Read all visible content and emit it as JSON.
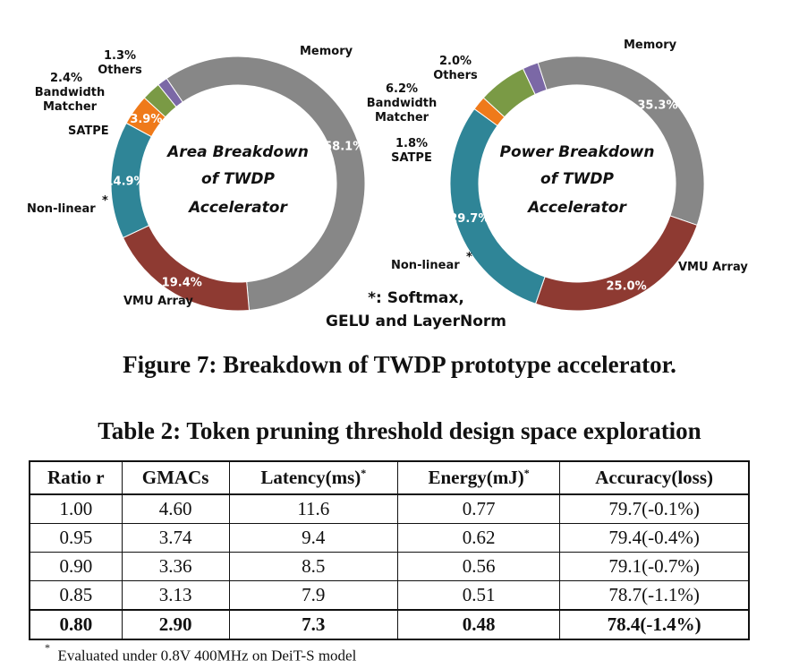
{
  "chart_data": [
    {
      "type": "pie",
      "center_text": [
        "Area Breakdown",
        "of TWDP",
        "Accelerator"
      ],
      "categories": [
        "Memory",
        "VMU Array",
        "Non-linear",
        "SATPE",
        "Bandwidth Matcher",
        "Others"
      ],
      "values": [
        58.1,
        19.4,
        14.9,
        3.9,
        2.4,
        1.3
      ],
      "value_labels": [
        "58.1%",
        "19.4%",
        "14.9%",
        "3.9%",
        "2.4%",
        "1.3%"
      ],
      "colors": [
        "#878787",
        "#8e3a32",
        "#2f8597",
        "#ef7a1a",
        "#7a9a45",
        "#7b68a6"
      ]
    },
    {
      "type": "pie",
      "center_text": [
        "Power Breakdown",
        "of TWDP",
        "Accelerator"
      ],
      "categories": [
        "Memory",
        "VMU Array",
        "Non-linear",
        "SATPE",
        "Bandwidth Matcher",
        "Others"
      ],
      "values": [
        35.3,
        25.0,
        29.7,
        1.8,
        6.2,
        2.0
      ],
      "value_labels": [
        "35.3%",
        "25.0%",
        "29.7%",
        "1.8%",
        "6.2%",
        "2.0%"
      ],
      "colors": [
        "#878787",
        "#8e3a32",
        "#2f8597",
        "#ef7a1a",
        "#7a9a45",
        "#7b68a6"
      ]
    }
  ],
  "labels": {
    "memory": "Memory",
    "vmu": "VMU Array",
    "nonlinear": "Non-linear",
    "star": "*",
    "satpe": "SATPE",
    "bandwidth": "Bandwidth",
    "matcher": "Matcher",
    "others": "Others"
  },
  "note_line1": "*: Softmax,",
  "note_line2": "GELU and LayerNorm",
  "figure_caption": "Figure 7: Breakdown of TWDP prototype accelerator.",
  "table_caption": "Table 2: Token pruning threshold design space exploration",
  "table": {
    "headers": [
      "Ratio r",
      "GMACs",
      "Latency(ms)",
      "Energy(mJ)",
      "Accuracy(loss)"
    ],
    "header_star": "*",
    "rows": [
      [
        "1.00",
        "4.60",
        "11.6",
        "0.77",
        "79.7(-0.1%)"
      ],
      [
        "0.95",
        "3.74",
        "9.4",
        "0.62",
        "79.4(-0.4%)"
      ],
      [
        "0.90",
        "3.36",
        "8.5",
        "0.56",
        "79.1(-0.7%)"
      ],
      [
        "0.85",
        "3.13",
        "7.9",
        "0.51",
        "78.7(-1.1%)"
      ],
      [
        "0.80",
        "2.90",
        "7.3",
        "0.48",
        "78.4(-1.4%)"
      ]
    ]
  },
  "footnote_mark": "*",
  "footnote": "Evaluated under 0.8V 400MHz on DeiT-S model"
}
